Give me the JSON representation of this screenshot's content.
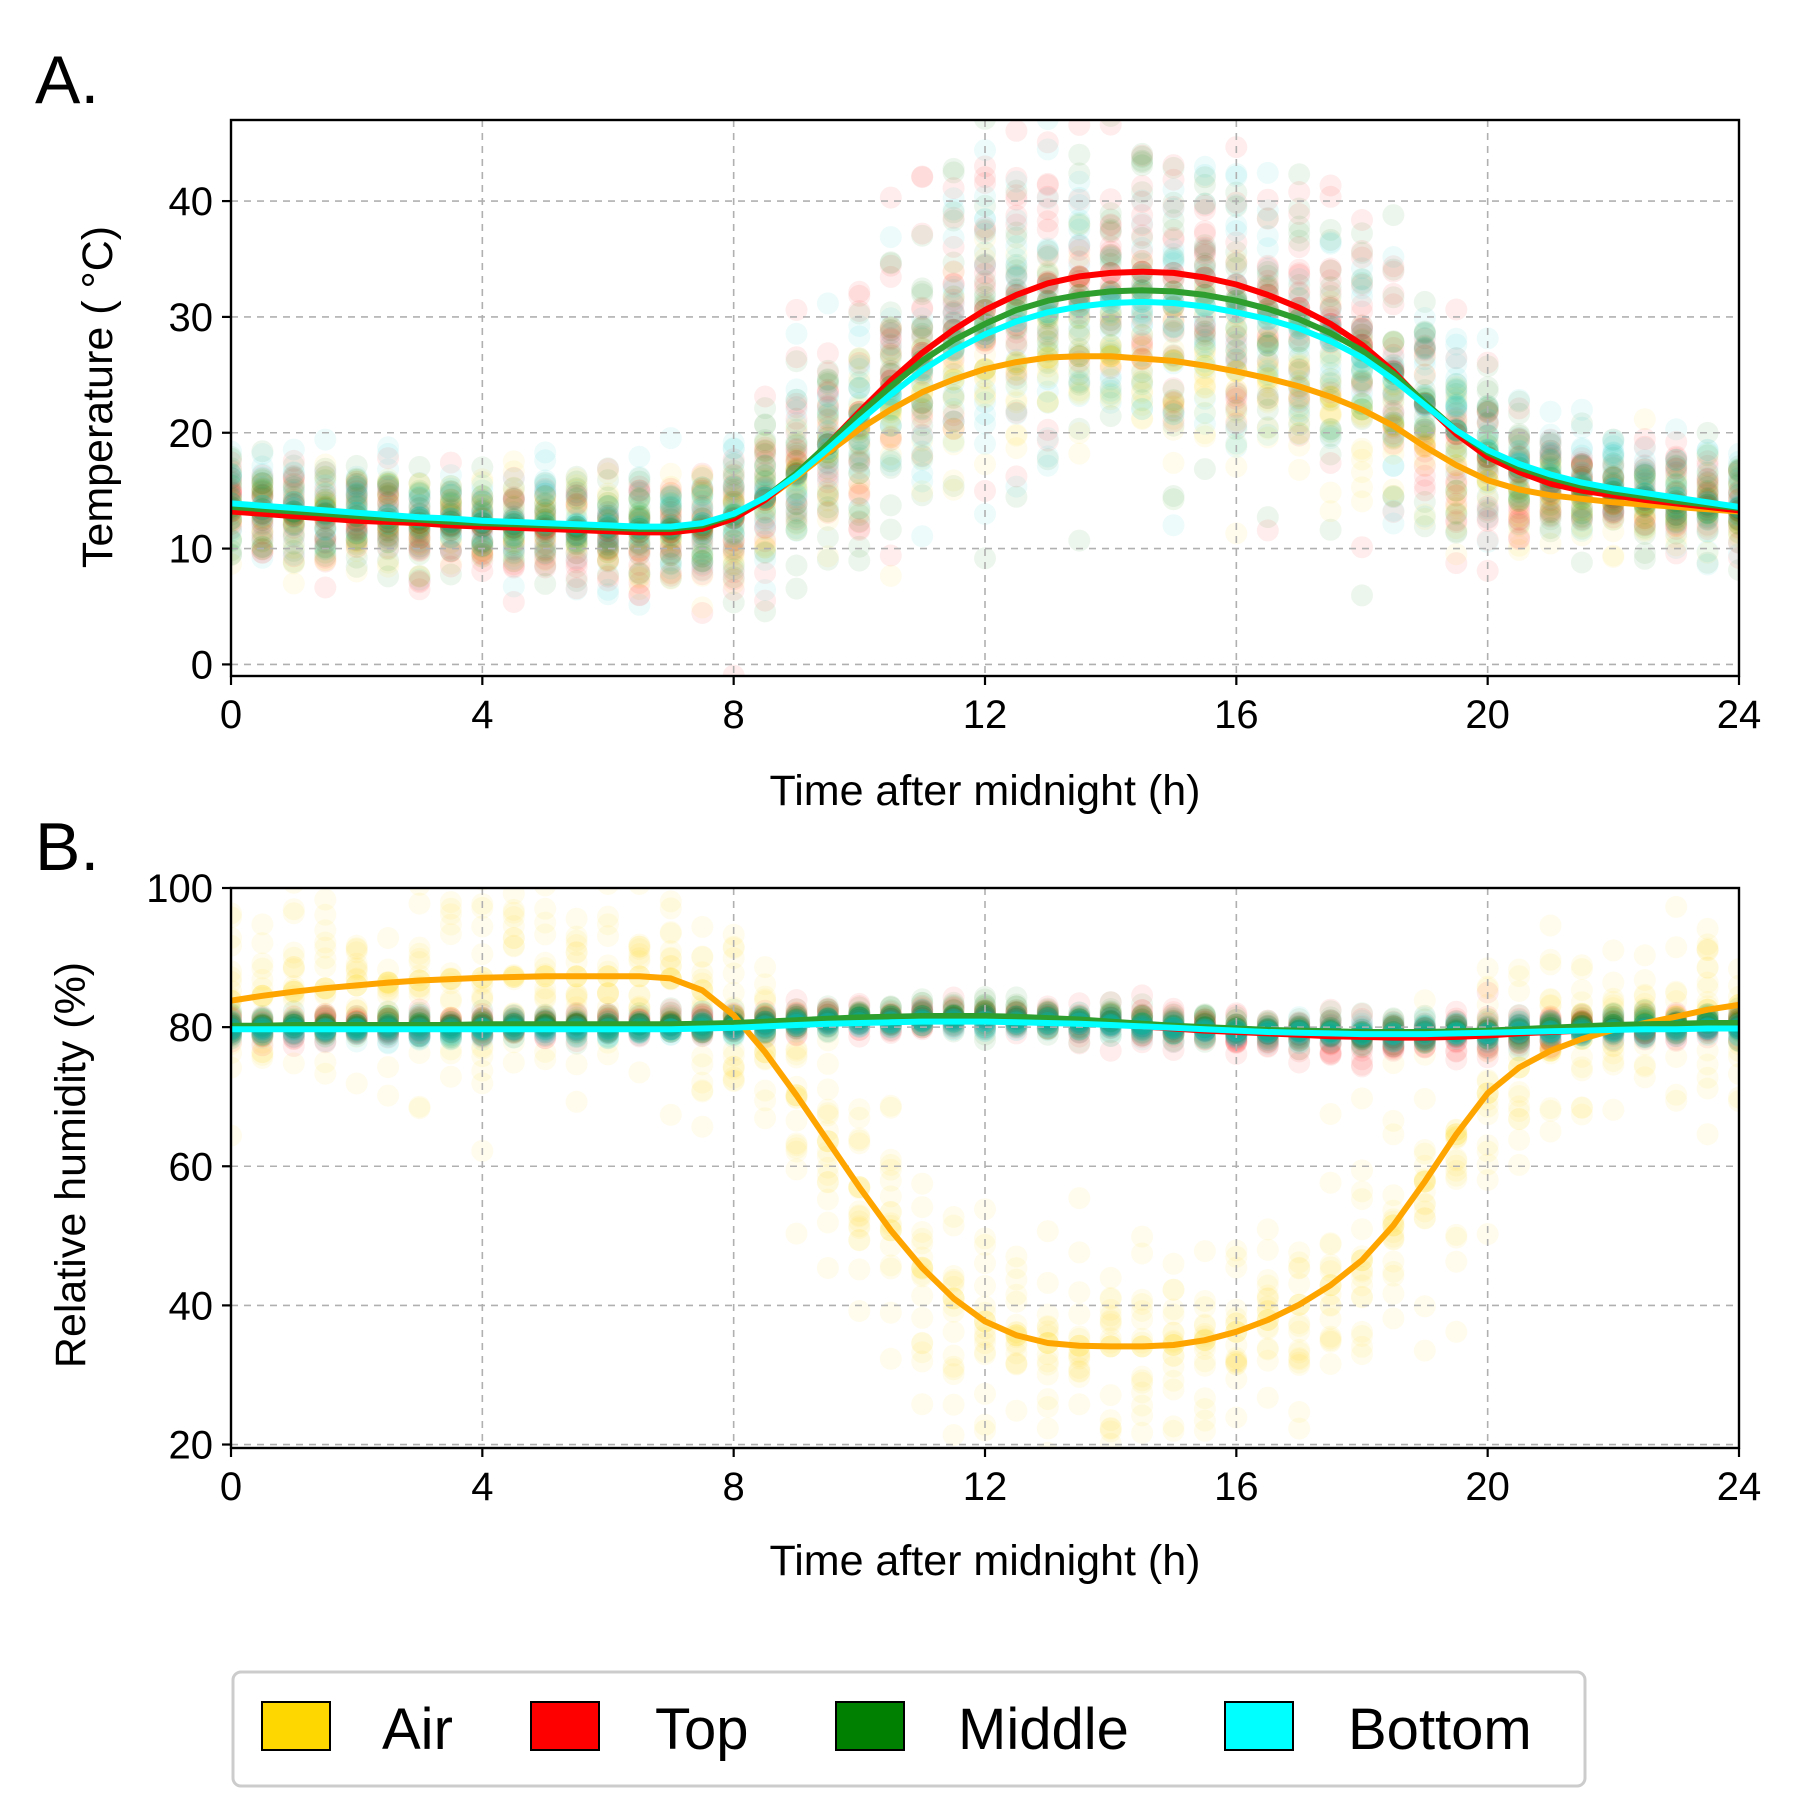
{
  "legend": [
    {
      "label": "Air",
      "color": "#FFD700"
    },
    {
      "label": "Top",
      "color": "#FF0000"
    },
    {
      "label": "Middle",
      "color": "#008000"
    },
    {
      "label": "Bottom",
      "color": "#00FFFF"
    }
  ],
  "chart_data": [
    {
      "panel": "A.",
      "type": "scatter",
      "xlabel": "Time after midnight (h)",
      "ylabel": "Temperature ( °C)",
      "xlim": [
        0,
        24
      ],
      "ylim": [
        -1,
        47
      ],
      "xticks": [
        0,
        4,
        8,
        12,
        16,
        20,
        24
      ],
      "yticks": [
        0,
        10,
        20,
        30,
        40
      ],
      "grid": true,
      "x": [
        0,
        0.5,
        1,
        1.5,
        2,
        2.5,
        3,
        3.5,
        4,
        4.5,
        5,
        5.5,
        6,
        6.5,
        7,
        7.5,
        8,
        8.5,
        9,
        9.5,
        10,
        10.5,
        11,
        11.5,
        12,
        12.5,
        13,
        13.5,
        14,
        14.5,
        15,
        15.5,
        16,
        16.5,
        17,
        17.5,
        18,
        18.5,
        19,
        19.5,
        20,
        20.5,
        21,
        21.5,
        22,
        22.5,
        23,
        23.5,
        24
      ],
      "series": [
        {
          "name": "Air",
          "line_color": "#FFA500",
          "scatter_color": "#FFD700",
          "mean": [
            13.3,
            13.1,
            12.9,
            12.7,
            12.5,
            12.3,
            12.2,
            12.1,
            12.0,
            11.9,
            11.8,
            11.7,
            11.6,
            11.5,
            11.5,
            11.8,
            12.7,
            14.2,
            16.2,
            18.3,
            20.3,
            22.0,
            23.5,
            24.6,
            25.5,
            26.1,
            26.5,
            26.6,
            26.6,
            26.4,
            26.2,
            25.8,
            25.3,
            24.7,
            24.0,
            23.1,
            22.0,
            20.6,
            18.8,
            17.2,
            15.9,
            15.1,
            14.6,
            14.3,
            14.0,
            13.8,
            13.6,
            13.4,
            13.2
          ],
          "spread": [
            3,
            3,
            3,
            3,
            3,
            3,
            3,
            3,
            3,
            3,
            3,
            3,
            3,
            3.5,
            3.5,
            4,
            4.5,
            5,
            5,
            5.5,
            5.5,
            5.5,
            5.5,
            5.5,
            5.5,
            5.5,
            5.5,
            5.5,
            5.5,
            5.5,
            5.5,
            5.5,
            5.5,
            5.5,
            5.5,
            5,
            5,
            5,
            4.5,
            4,
            4,
            3.5,
            3.5,
            3,
            3,
            3,
            3,
            3,
            3
          ]
        },
        {
          "name": "Top",
          "line_color": "#FF0000",
          "scatter_color": "#FF0000",
          "mean": [
            13.2,
            13.0,
            12.8,
            12.6,
            12.4,
            12.3,
            12.2,
            12.0,
            11.9,
            11.8,
            11.7,
            11.6,
            11.5,
            11.4,
            11.4,
            11.7,
            12.6,
            14.2,
            16.4,
            19.0,
            21.8,
            24.5,
            26.9,
            28.9,
            30.6,
            31.9,
            32.9,
            33.5,
            33.8,
            33.9,
            33.8,
            33.4,
            32.8,
            31.9,
            30.8,
            29.4,
            27.6,
            25.3,
            22.5,
            19.9,
            17.9,
            16.6,
            15.6,
            15.0,
            14.6,
            14.2,
            13.9,
            13.6,
            13.3
          ],
          "spread": [
            3,
            3,
            3,
            3,
            3,
            3,
            3,
            3,
            3,
            3,
            3,
            3,
            3,
            3.5,
            3.5,
            4,
            4.5,
            5,
            6,
            7,
            8,
            9,
            10,
            10,
            10,
            10,
            10,
            10,
            10,
            10,
            10,
            10,
            10,
            9.5,
            9,
            8.5,
            8,
            7.5,
            7,
            6,
            5,
            4,
            3.5,
            3,
            3,
            3,
            3,
            3,
            3
          ]
        },
        {
          "name": "Middle",
          "line_color": "#2E9E2E",
          "scatter_color": "#008000",
          "mean": [
            13.6,
            13.4,
            13.2,
            13.0,
            12.8,
            12.6,
            12.5,
            12.3,
            12.2,
            12.1,
            12.0,
            11.9,
            11.8,
            11.7,
            11.7,
            12.0,
            12.9,
            14.4,
            16.5,
            19.0,
            21.6,
            24.0,
            26.2,
            28.0,
            29.4,
            30.6,
            31.4,
            31.9,
            32.2,
            32.3,
            32.2,
            31.9,
            31.4,
            30.7,
            29.8,
            28.6,
            27.1,
            25.1,
            22.6,
            20.2,
            18.3,
            17.0,
            16.1,
            15.4,
            14.9,
            14.5,
            14.1,
            13.8,
            13.5
          ],
          "spread": [
            3,
            3,
            3,
            3,
            3,
            3,
            3,
            3,
            3,
            3,
            3,
            3,
            3,
            3.5,
            3.5,
            4,
            4.5,
            5,
            6,
            7,
            8,
            8.5,
            9,
            9,
            9,
            9,
            9,
            9,
            9,
            9,
            9,
            9,
            9,
            8.5,
            8,
            8,
            7.5,
            7,
            6.5,
            5.5,
            4.5,
            4,
            3.5,
            3,
            3,
            3,
            3,
            3,
            3
          ]
        },
        {
          "name": "Bottom",
          "line_color": "#00FFFF",
          "scatter_color": "#00C8C8",
          "mean": [
            13.9,
            13.7,
            13.5,
            13.3,
            13.1,
            12.9,
            12.7,
            12.6,
            12.4,
            12.3,
            12.2,
            12.1,
            12.0,
            11.9,
            11.9,
            12.2,
            13.0,
            14.4,
            16.3,
            18.6,
            21.0,
            23.3,
            25.4,
            27.1,
            28.5,
            29.6,
            30.4,
            30.9,
            31.2,
            31.3,
            31.2,
            30.9,
            30.4,
            29.8,
            29.0,
            27.9,
            26.5,
            24.6,
            22.4,
            20.2,
            18.5,
            17.3,
            16.4,
            15.7,
            15.2,
            14.8,
            14.4,
            14.0,
            13.6
          ],
          "spread": [
            3,
            3,
            3,
            3,
            3,
            3,
            3,
            3,
            3,
            3,
            3,
            3,
            3,
            3.5,
            3.5,
            4,
            4.5,
            5,
            5.5,
            6.5,
            7.5,
            8,
            8.5,
            8.5,
            8.5,
            8.5,
            8.5,
            8.5,
            8.5,
            8.5,
            8.5,
            8.5,
            8.5,
            8,
            7.5,
            7.5,
            7,
            6.5,
            6,
            5,
            4.5,
            4,
            3.5,
            3,
            3,
            3,
            3,
            3,
            3
          ]
        }
      ]
    },
    {
      "panel": "B.",
      "type": "scatter",
      "xlabel": "Time after midnight (h)",
      "ylabel": "Relative humidity (%)",
      "xlim": [
        0,
        24
      ],
      "ylim": [
        19.5,
        100
      ],
      "xticks": [
        0,
        4,
        8,
        12,
        16,
        20,
        24
      ],
      "yticks": [
        20,
        40,
        60,
        80,
        100
      ],
      "grid": true,
      "x": [
        0,
        0.5,
        1,
        1.5,
        2,
        2.5,
        3,
        3.5,
        4,
        4.5,
        5,
        5.5,
        6,
        6.5,
        7,
        7.5,
        8,
        8.5,
        9,
        9.5,
        10,
        10.5,
        11,
        11.5,
        12,
        12.5,
        13,
        13.5,
        14,
        14.5,
        15,
        15.5,
        16,
        16.5,
        17,
        17.5,
        18,
        18.5,
        19,
        19.5,
        20,
        20.5,
        21,
        21.5,
        22,
        22.5,
        23,
        23.5,
        24
      ],
      "series": [
        {
          "name": "Air",
          "line_color": "#FFA500",
          "scatter_color": "#FFD700",
          "mean": [
            83.8,
            84.5,
            85.1,
            85.6,
            86.0,
            86.4,
            86.7,
            86.9,
            87.1,
            87.2,
            87.3,
            87.3,
            87.3,
            87.3,
            87.0,
            85.3,
            81.7,
            76.4,
            70.2,
            63.6,
            57.0,
            50.8,
            45.4,
            41.0,
            37.7,
            35.7,
            34.6,
            34.2,
            34.1,
            34.1,
            34.3,
            35.0,
            36.2,
            37.9,
            40.1,
            42.9,
            46.5,
            51.5,
            57.8,
            64.6,
            70.5,
            74.2,
            76.6,
            78.3,
            79.6,
            80.6,
            81.5,
            82.5,
            83.2
          ],
          "spread": [
            10,
            10,
            10,
            10,
            10,
            10,
            10,
            10,
            10,
            10,
            10,
            10,
            10,
            10,
            10,
            11,
            12,
            13,
            14,
            14,
            14,
            14,
            13,
            12,
            11,
            10,
            10,
            10,
            10,
            10,
            10,
            10,
            10,
            10,
            11,
            12,
            13,
            14,
            14,
            14,
            13,
            12,
            11,
            10,
            10,
            10,
            10,
            10,
            10
          ]
        },
        {
          "name": "Top",
          "line_color": "#FF0000",
          "scatter_color": "#FF0000",
          "mean": [
            79.8,
            79.9,
            80.0,
            80.0,
            80.1,
            80.1,
            80.1,
            80.2,
            80.2,
            80.2,
            80.2,
            80.2,
            80.2,
            80.3,
            80.3,
            80.3,
            80.4,
            80.5,
            80.7,
            80.9,
            81.1,
            81.2,
            81.3,
            81.3,
            81.3,
            81.2,
            81.0,
            80.7,
            80.4,
            80.1,
            79.8,
            79.5,
            79.3,
            79.1,
            78.9,
            78.7,
            78.6,
            78.5,
            78.5,
            78.6,
            78.8,
            79.1,
            79.3,
            79.5,
            79.7,
            79.8,
            79.9,
            80.0,
            80.1
          ],
          "spread": [
            1.2,
            1.2,
            1.2,
            1.2,
            1.2,
            1.2,
            1.2,
            1.2,
            1.2,
            1.2,
            1.2,
            1.2,
            1.2,
            1.2,
            1.2,
            1.2,
            1.2,
            1.2,
            1.2,
            1.3,
            1.3,
            1.3,
            1.3,
            1.4,
            1.4,
            1.4,
            1.5,
            1.6,
            1.7,
            1.8,
            1.9,
            2.0,
            2.1,
            2.2,
            2.3,
            2.4,
            2.5,
            2.6,
            2.6,
            2.5,
            2.3,
            2.0,
            1.7,
            1.5,
            1.3,
            1.2,
            1.2,
            1.2,
            1.2
          ]
        },
        {
          "name": "Middle",
          "line_color": "#2E9E2E",
          "scatter_color": "#008000",
          "mean": [
            80.2,
            80.2,
            80.3,
            80.3,
            80.3,
            80.3,
            80.3,
            80.3,
            80.4,
            80.4,
            80.4,
            80.4,
            80.4,
            80.4,
            80.4,
            80.5,
            80.6,
            80.8,
            81.0,
            81.2,
            81.4,
            81.5,
            81.6,
            81.6,
            81.6,
            81.5,
            81.3,
            81.1,
            80.8,
            80.5,
            80.2,
            80.0,
            79.8,
            79.6,
            79.5,
            79.4,
            79.3,
            79.3,
            79.3,
            79.4,
            79.5,
            79.7,
            79.9,
            80.1,
            80.3,
            80.4,
            80.5,
            80.6,
            80.6
          ],
          "spread": [
            1.2,
            1.2,
            1.2,
            1.2,
            1.2,
            1.2,
            1.2,
            1.2,
            1.2,
            1.2,
            1.2,
            1.2,
            1.2,
            1.2,
            1.2,
            1.2,
            1.2,
            1.2,
            1.3,
            1.3,
            1.4,
            1.4,
            1.5,
            1.5,
            1.5,
            1.5,
            1.5,
            1.5,
            1.5,
            1.5,
            1.5,
            1.5,
            1.5,
            1.5,
            1.5,
            1.5,
            1.5,
            1.5,
            1.5,
            1.4,
            1.4,
            1.3,
            1.3,
            1.2,
            1.2,
            1.2,
            1.2,
            1.2,
            1.2
          ]
        },
        {
          "name": "Bottom",
          "line_color": "#00FFFF",
          "scatter_color": "#00C8C8",
          "mean": [
            79.7,
            79.7,
            79.7,
            79.7,
            79.7,
            79.7,
            79.7,
            79.7,
            79.7,
            79.7,
            79.7,
            79.7,
            79.7,
            79.7,
            79.7,
            79.8,
            79.9,
            80.1,
            80.3,
            80.5,
            80.6,
            80.7,
            80.8,
            80.8,
            80.8,
            80.7,
            80.6,
            80.5,
            80.3,
            80.1,
            79.9,
            79.7,
            79.5,
            79.3,
            79.2,
            79.1,
            79.0,
            79.0,
            79.0,
            79.1,
            79.2,
            79.3,
            79.4,
            79.5,
            79.6,
            79.7,
            79.7,
            79.8,
            79.8
          ],
          "spread": [
            1.0,
            1.0,
            1.0,
            1.0,
            1.0,
            1.0,
            1.0,
            1.0,
            1.0,
            1.0,
            1.0,
            1.0,
            1.0,
            1.0,
            1.0,
            1.0,
            1.0,
            1.0,
            1.0,
            1.0,
            1.0,
            1.0,
            1.0,
            1.0,
            1.0,
            1.0,
            1.0,
            1.0,
            1.0,
            1.0,
            1.0,
            1.0,
            1.0,
            1.0,
            1.0,
            1.0,
            1.0,
            1.0,
            1.0,
            1.0,
            1.0,
            1.0,
            1.0,
            1.0,
            1.0,
            1.0,
            1.0,
            1.0,
            1.0
          ]
        }
      ]
    }
  ]
}
